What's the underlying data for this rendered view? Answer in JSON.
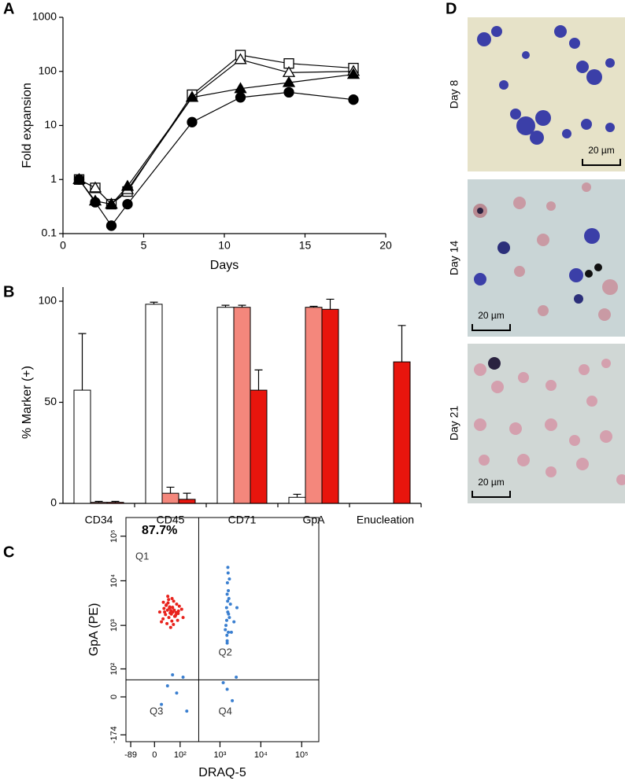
{
  "chart_data": [
    {
      "panel": "A",
      "type": "line",
      "x_label": "Days",
      "y_label": "Fold expansion",
      "x": [
        1,
        2,
        3,
        4,
        8,
        11,
        14,
        18
      ],
      "series": [
        {
          "marker": "square",
          "filled": false,
          "color": "#000000",
          "values": [
            1,
            0.7,
            0.35,
            0.6,
            37,
            200,
            140,
            115
          ]
        },
        {
          "marker": "triangle",
          "filled": false,
          "color": "#000000",
          "values": [
            1,
            0.7,
            0.35,
            0.65,
            33,
            165,
            95,
            100
          ]
        },
        {
          "marker": "triangle",
          "filled": true,
          "color": "#000000",
          "values": [
            1,
            0.4,
            0.35,
            0.75,
            33,
            48,
            62,
            88
          ]
        },
        {
          "marker": "circle",
          "filled": true,
          "color": "#000000",
          "values": [
            1,
            0.38,
            0.14,
            0.35,
            11.5,
            33,
            41,
            30
          ]
        }
      ],
      "xlim": [
        0,
        20
      ],
      "xticks": [
        0,
        5,
        10,
        15,
        20
      ],
      "ylim": [
        0.1,
        1000
      ],
      "yticks": [
        0.1,
        1,
        10,
        100,
        1000
      ],
      "log_y": true
    },
    {
      "panel": "B",
      "type": "bar",
      "y_label": "% Marker (+)",
      "categories": [
        "CD34",
        "CD45",
        "CD71",
        "GpA",
        "Enucleation"
      ],
      "series": [
        {
          "color": "#ffffff",
          "values": [
            56,
            98.5,
            97,
            3,
            null
          ],
          "errors": [
            28,
            1,
            1,
            1.5,
            null
          ]
        },
        {
          "color": "#f4877c",
          "values": [
            0.5,
            5,
            97,
            97,
            null
          ],
          "errors": [
            0.5,
            3,
            1,
            0.5,
            null
          ]
        },
        {
          "color": "#e8150d",
          "values": [
            0.5,
            2,
            56,
            96,
            70
          ],
          "errors": [
            0.5,
            3,
            10,
            5,
            18
          ]
        }
      ],
      "ylim": [
        0,
        107
      ],
      "yticks": [
        0,
        50,
        100
      ]
    },
    {
      "panel": "C",
      "type": "scatter",
      "x_label": "DRAQ-5",
      "y_label": "GpA (PE)",
      "annotation": "87.7%",
      "quadrants": [
        "Q1",
        "Q2",
        "Q3",
        "Q4"
      ],
      "gate": {
        "x": 300,
        "y": 50
      },
      "series": [
        {
          "color": "#e8221c",
          "x": [
            30,
            45,
            60,
            20,
            80,
            55,
            40,
            70,
            35,
            90,
            25,
            65,
            50,
            110,
            38,
            48,
            75,
            58,
            28,
            85,
            42,
            62,
            33,
            95,
            52,
            68,
            44,
            120,
            15,
            72,
            36,
            57,
            47,
            88,
            26,
            64,
            53,
            41,
            78,
            60
          ],
          "y": [
            2000,
            1500,
            2500,
            1200,
            3000,
            1800,
            2200,
            1600,
            2800,
            2100,
            1400,
            3500,
            1900,
            2300,
            1100,
            2600,
            1700,
            4000,
            2400,
            1300,
            3200,
            2000,
            1750,
            2700,
            900,
            2200,
            3800,
            1500,
            2000,
            1600,
            2900,
            1250,
            2450,
            1850,
            3300,
            1050,
            2150,
            4500,
            1950,
            2550
          ]
        },
        {
          "color": "#3a7fd0",
          "x": [
            1500,
            1600,
            1400,
            1700,
            1550,
            1450,
            1800,
            1650,
            1500,
            1350,
            2200,
            1600,
            1520,
            1580,
            1480,
            2600,
            1620,
            1540,
            1700,
            1460,
            1900,
            1560,
            1500,
            40,
            80,
            20,
            120,
            60,
            150,
            1500,
            2000,
            1200,
            2500
          ],
          "y": [
            400,
            700,
            1000,
            1500,
            2000,
            2500,
            3000,
            4000,
            5000,
            800,
            1200,
            6000,
            9000,
            15000,
            600,
            2500,
            1800,
            3500,
            11000,
            1300,
            700,
            20000,
            450,
            30,
            10,
            -20,
            60,
            70,
            -40,
            20,
            -10,
            40,
            60
          ]
        }
      ],
      "xlim": [
        -120,
        262144
      ],
      "xticks": [
        -89,
        0,
        {
          "value": 100,
          "label": "10²"
        },
        {
          "value": 1000,
          "label": "10³"
        },
        {
          "value": 10000,
          "label": "10⁴"
        },
        {
          "value": 100000,
          "label": "10⁵"
        }
      ],
      "ylim": [
        -250,
        262144
      ],
      "yticks": [
        -174,
        0,
        {
          "value": 100,
          "label": "10²"
        },
        {
          "value": 1000,
          "label": "10³"
        },
        {
          "value": 10000,
          "label": "10⁴"
        },
        {
          "value": 100000,
          "label": "10⁵"
        }
      ]
    }
  ],
  "panel_d": {
    "panel": "D",
    "images": [
      {
        "label": "Day 8",
        "scale_bar": "20 µm"
      },
      {
        "label": "Day 14",
        "scale_bar": "20 µm"
      },
      {
        "label": "Day 21",
        "scale_bar": "20 µm"
      }
    ]
  }
}
